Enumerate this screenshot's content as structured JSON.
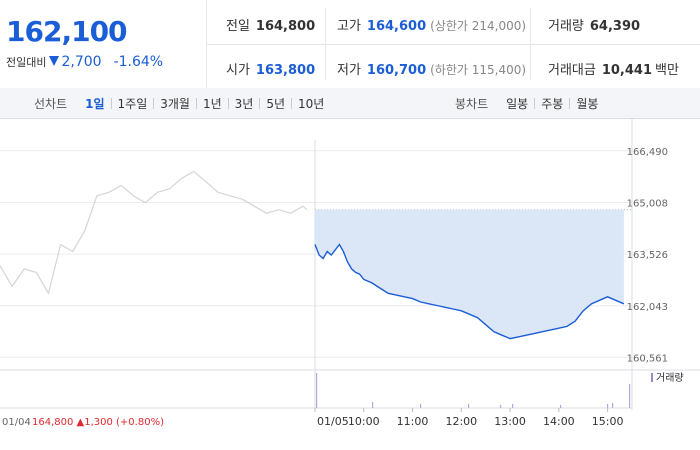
{
  "summary": {
    "price": "162,100",
    "change_label": "전일대비",
    "change": "2,700",
    "change_rate": "-1.64%",
    "prev_close_label": "전일",
    "prev_close": "164,800",
    "open_label": "시가",
    "open": "163,800",
    "high_label": "고가",
    "high": "164,600",
    "upper_limit": "(상한가 214,000)",
    "low_label": "저가",
    "low": "160,700",
    "lower_limit": "(하한가 115,400)",
    "volume_label": "거래량",
    "volume": "64,390",
    "amount_label": "거래대금",
    "amount": "10,441",
    "amount_unit": "백만"
  },
  "periods": {
    "title": "선차트",
    "items": [
      "1일",
      "1주일",
      "3개월",
      "1년",
      "3년",
      "5년",
      "10년"
    ],
    "active": "1일"
  },
  "candles": {
    "title": "봉차트",
    "items": [
      "일봉",
      "주봉",
      "월봉"
    ]
  },
  "colors": {
    "accent": "#1b5dd6",
    "down": "#1b5dd6",
    "up": "#e0282f",
    "prev_line": "#d5d5d5",
    "fill": "#dbe7f7"
  },
  "footnote": {
    "date": "01/04",
    "price": "164,800",
    "arrow": "▲",
    "change": "1,300",
    "rate": "(+0.80%)"
  },
  "chart_data": {
    "type": "line",
    "title": "",
    "ylim": [
      160200,
      166800
    ],
    "yticks": [
      "166,490",
      "165,008",
      "163,526",
      "162,043",
      "160,561"
    ],
    "ytick_values": [
      166490,
      165008,
      163526,
      162043,
      160561
    ],
    "xticks": [
      "01/05",
      "10:00",
      "11:00",
      "12:00",
      "13:00",
      "14:00",
      "15:00"
    ],
    "xtick_times": [
      "09:00",
      "10:00",
      "11:00",
      "12:00",
      "13:00",
      "14:00",
      "15:00"
    ],
    "reference_line": 164800,
    "series": [
      {
        "name": "",
        "x": [
          "09:00",
          "09:05",
          "09:10",
          "09:15",
          "09:20",
          "09:25",
          "09:30",
          "09:35",
          "09:40",
          "09:45",
          "09:50",
          "09:55",
          "10:00",
          "10:10",
          "10:20",
          "10:30",
          "10:40",
          "10:50",
          "11:00",
          "11:10",
          "11:20",
          "11:30",
          "11:40",
          "11:50",
          "12:00",
          "12:10",
          "12:20",
          "12:30",
          "12:40",
          "12:50",
          "13:00",
          "13:10",
          "13:20",
          "13:30",
          "13:40",
          "13:50",
          "14:00",
          "14:10",
          "14:20",
          "14:30",
          "14:40",
          "14:50",
          "15:00",
          "15:10",
          "15:20"
        ],
        "y": [
          163800,
          163500,
          163400,
          163600,
          163500,
          163650,
          163800,
          163600,
          163300,
          163100,
          163000,
          162950,
          162800,
          162700,
          162550,
          162400,
          162350,
          162300,
          162250,
          162150,
          162100,
          162050,
          162000,
          161950,
          161900,
          161800,
          161700,
          161500,
          161300,
          161200,
          161100,
          161150,
          161200,
          161250,
          161300,
          161350,
          161400,
          161450,
          161600,
          161900,
          162100,
          162200,
          162300,
          162200,
          162100
        ]
      },
      {
        "name": "01/04",
        "x": [
          "09:00",
          "09:15",
          "09:30",
          "09:45",
          "10:00",
          "10:15",
          "10:30",
          "10:45",
          "11:00",
          "11:15",
          "11:30",
          "11:45",
          "12:00",
          "12:15",
          "12:30",
          "12:45",
          "13:00",
          "13:15",
          "13:30",
          "13:45",
          "14:00",
          "14:15",
          "14:30",
          "14:45",
          "15:00",
          "15:15",
          "15:20"
        ],
        "y": [
          163200,
          162600,
          163100,
          163000,
          162400,
          163800,
          163600,
          164200,
          165200,
          165300,
          165500,
          165200,
          165000,
          165300,
          165400,
          165700,
          165900,
          165600,
          165300,
          165200,
          165100,
          164900,
          164700,
          164800,
          164700,
          164900,
          164800
        ]
      }
    ],
    "volume_label": "거래량"
  }
}
